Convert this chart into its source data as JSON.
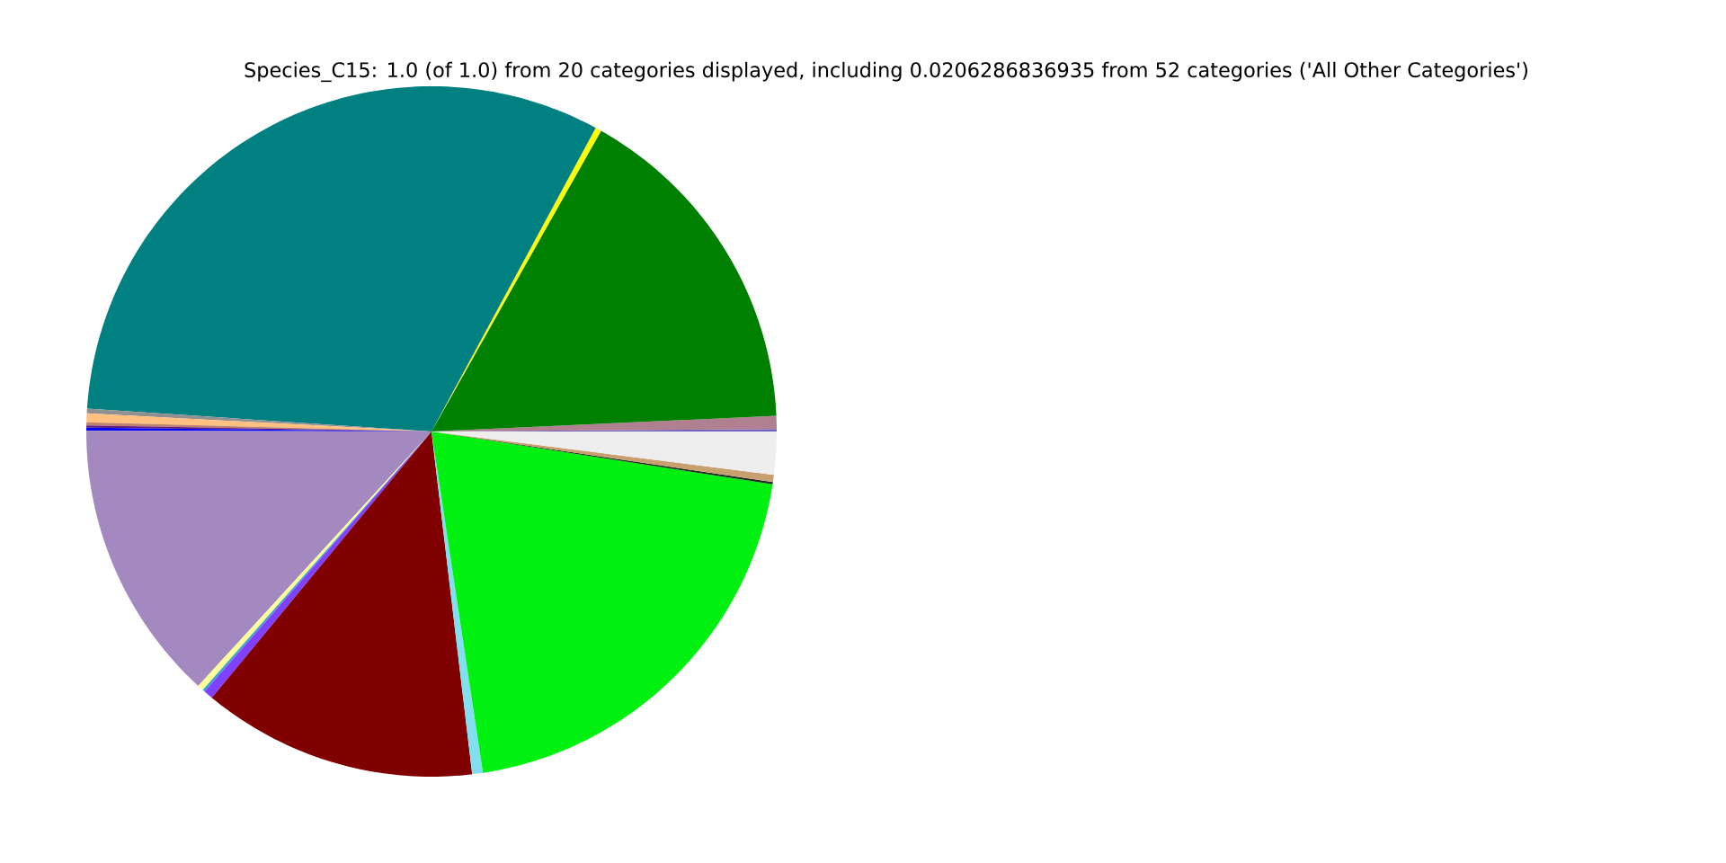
{
  "chart_data": {
    "type": "pie",
    "title": "Species_C15: 1.0 (of 1.0) from 20 categories displayed, including 0.0206286836935 from 52 categories ('All Other Categories')",
    "categories": [
      null,
      null,
      null,
      null,
      null,
      null,
      null,
      null,
      null,
      null,
      null,
      null,
      null,
      null,
      null,
      null,
      null,
      null,
      null,
      null
    ],
    "values": [
      0.11,
      0.61,
      16.11,
      0.28,
      31.83,
      0.22,
      0.42,
      0.14,
      0.11,
      0.14,
      13.22,
      0.28,
      0.11,
      0.44,
      12.86,
      0.5,
      20.17,
      0.11,
      0.33,
      2.01
    ],
    "colors": [
      "#7060c0",
      "#b08090",
      "#008000",
      "#ffff00",
      "#008080",
      "#909090",
      "#ffc080",
      "#c08070",
      "#602080",
      "#0000ff",
      "#a389c0",
      "#ffff99",
      "#40a0d0",
      "#8040ff",
      "#800000",
      "#80e0f0",
      "#00f010",
      "#203020",
      "#c8a070",
      "#eeeeee"
    ]
  }
}
